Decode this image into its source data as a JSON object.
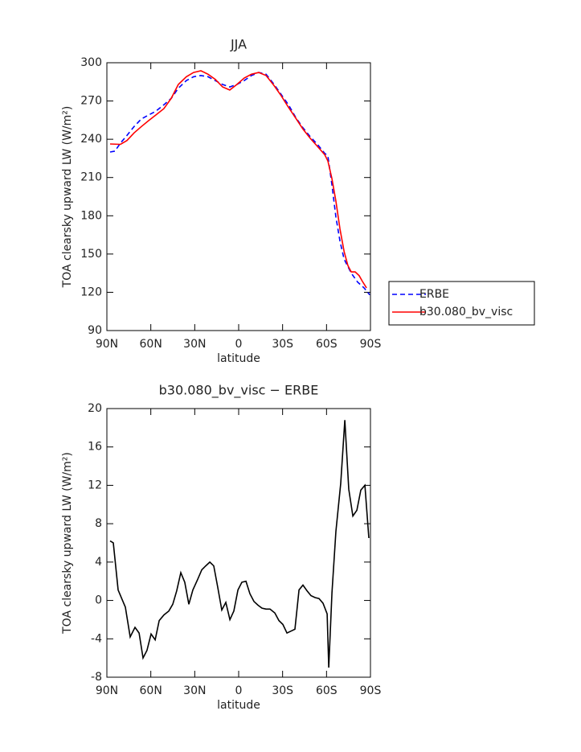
{
  "chart_data": [
    {
      "type": "line",
      "title": "JJA",
      "xlabel": "latitude",
      "ylabel": "TOA clearsky upward LW (W/m²)",
      "xlim": [
        90,
        -90
      ],
      "xticks": [
        {
          "value": 90,
          "label": "90N"
        },
        {
          "value": 60,
          "label": "60N"
        },
        {
          "value": 30,
          "label": "30N"
        },
        0,
        {
          "value": -30,
          "label": "30S"
        },
        {
          "value": -60,
          "label": "60S"
        },
        {
          "value": -90,
          "label": "90S"
        }
      ],
      "ylim": [
        90,
        300
      ],
      "yticks": [
        90,
        120,
        150,
        180,
        210,
        240,
        270,
        300
      ],
      "legend": "right",
      "series": [
        {
          "name": "ERBE",
          "color": "#0000ff",
          "style": "dashed",
          "x": [
            87.8,
            84.5,
            80.7,
            76.3,
            71.4,
            66.4,
            61.5,
            56.6,
            51.1,
            46.1,
            41.2,
            35.7,
            30.8,
            25.8,
            20.9,
            16,
            11,
            6.1,
            1.2,
            -3.8,
            -8.7,
            -13.7,
            -18.7,
            -24.2,
            -29.1,
            -34,
            -39,
            -43.9,
            -48.9,
            -53.8,
            -58.7,
            -60.9,
            -63.7,
            -66.4,
            -69.2,
            -72,
            -76.9,
            -81.2,
            -85.6,
            -89.5
          ],
          "values": [
            230,
            230.7,
            237,
            243,
            250,
            256,
            259,
            262,
            267,
            272,
            280,
            286,
            289,
            290,
            289,
            286,
            283,
            281,
            283,
            286,
            290,
            292.4,
            291,
            283,
            275,
            267,
            257,
            249,
            242,
            236,
            229,
            227,
            204,
            179,
            160,
            146,
            135,
            128,
            123.5,
            118
          ]
        },
        {
          "name": "b30.080_bv_visc",
          "color": "#ff0000",
          "style": "solid",
          "x": [
            87.8,
            80.7,
            76.3,
            71.4,
            66.4,
            61.5,
            56.6,
            51.1,
            46.1,
            41.2,
            35.7,
            30.8,
            25.8,
            20.9,
            16,
            11,
            6.1,
            1.2,
            -3.8,
            -8.7,
            -13.7,
            -18.7,
            -24.2,
            -29.1,
            -34,
            -39,
            -43.9,
            -48.9,
            -53.8,
            -58.7,
            -60.9,
            -63.7,
            -66.4,
            -69.2,
            -72,
            -74.6,
            -76.9,
            -79.6,
            -82.3,
            -84.5,
            -87.3
          ],
          "values": [
            236.3,
            236,
            239,
            245,
            250,
            254.6,
            259,
            264,
            272,
            283,
            289,
            292.4,
            293.7,
            291,
            287,
            281,
            278.6,
            283,
            288,
            291,
            292.4,
            290,
            282,
            274,
            265,
            256.5,
            248,
            240.7,
            234.4,
            228,
            223,
            209,
            191.5,
            169.5,
            152,
            141,
            136,
            136,
            133,
            128.5,
            123.5
          ]
        }
      ]
    },
    {
      "type": "line",
      "title": "b30.080_bv_visc − ERBE",
      "xlabel": "latitude",
      "ylabel": "TOA clearsky upward LW (W/m²)",
      "xlim": [
        90,
        -90
      ],
      "xticks": [
        {
          "value": 90,
          "label": "90N"
        },
        {
          "value": 60,
          "label": "60N"
        },
        {
          "value": 30,
          "label": "30N"
        },
        0,
        {
          "value": -30,
          "label": "30S"
        },
        {
          "value": -60,
          "label": "60S"
        },
        {
          "value": -90,
          "label": "90S"
        }
      ],
      "ylim": [
        -8,
        20
      ],
      "yticks": [
        -8,
        -4,
        0,
        4,
        8,
        12,
        16,
        20
      ],
      "series": [
        {
          "color": "#000000",
          "style": "solid",
          "x": [
            87.8,
            85.6,
            82.3,
            79.6,
            77.4,
            74.1,
            70.8,
            68,
            65.3,
            62.6,
            59.8,
            57,
            54.3,
            51,
            47.7,
            45,
            42.3,
            39.5,
            36.8,
            34,
            31.3,
            28,
            25.2,
            22.5,
            19.7,
            17,
            14.3,
            11.5,
            8.8,
            6,
            3.3,
            0.5,
            -2.2,
            -5,
            -7.7,
            -10.4,
            -13.2,
            -15.9,
            -18.7,
            -21.4,
            -24.7,
            -27.5,
            -30.2,
            -33,
            -35.7,
            -38.4,
            -41.2,
            -43.9,
            -46.7,
            -49.4,
            -52.2,
            -54.9,
            -57.6,
            -60.4,
            -61.5,
            -63.7,
            -66.4,
            -69.7,
            -72.5,
            -75.2,
            -78,
            -80.7,
            -83.4,
            -86.2,
            -88.9
          ],
          "values": [
            6.2,
            6,
            1.1,
            0.1,
            -0.7,
            -3.8,
            -2.8,
            -3.4,
            -6,
            -5.2,
            -3.5,
            -4.1,
            -2.1,
            -1.5,
            -1.1,
            -0.4,
            1,
            2.9,
            1.9,
            -0.4,
            1.1,
            2.2,
            3.2,
            3.6,
            4,
            3.6,
            1.4,
            -1,
            -0.2,
            -2,
            -1.1,
            1.1,
            1.9,
            2,
            0.7,
            -0.1,
            -0.5,
            -0.8,
            -0.9,
            -0.9,
            -1.3,
            -2.1,
            -2.5,
            -3.4,
            -3.2,
            -3,
            1.1,
            1.6,
            1,
            0.5,
            0.3,
            0.2,
            -0.3,
            -1.4,
            -7,
            0.8,
            7.2,
            12.2,
            18.8,
            11.6,
            8.8,
            9.4,
            11.5,
            12,
            6.5
          ]
        }
      ]
    }
  ]
}
